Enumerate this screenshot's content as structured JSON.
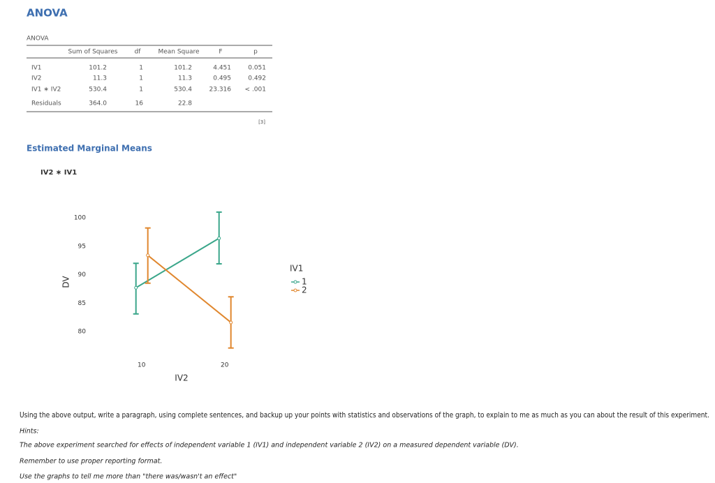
{
  "header": {
    "title": "ANOVA"
  },
  "table": {
    "title": "ANOVA",
    "columns": [
      "Sum of Squares",
      "df",
      "Mean Square",
      "F",
      "p"
    ],
    "rows": [
      [
        "IV1",
        "101.2",
        "1",
        "101.2",
        "4.451",
        "0.051"
      ],
      [
        "IV2",
        "11.3",
        "1",
        "11.3",
        "0.495",
        "0.492"
      ],
      [
        "IV1 ∗ IV2",
        "530.4",
        "1",
        "530.4",
        "23.316",
        "< .001"
      ],
      [
        "Residuals",
        "364.0",
        "16",
        "22.8"
      ]
    ],
    "footnote": "[3]"
  },
  "emm": {
    "title": "Estimated Marginal Means",
    "subtitle": "IV2 ∗ IV1"
  },
  "chart_data": {
    "type": "line",
    "x_label": "IV2",
    "y_label": "DV",
    "legend_title": "IV1",
    "x": [
      10,
      20
    ],
    "series": [
      {
        "name": "1",
        "color": "#3aa68a",
        "values": [
          87.7,
          96.4
        ],
        "lower": [
          83.1,
          91.9
        ],
        "upper": [
          92.0,
          101.0
        ]
      },
      {
        "name": "2",
        "color": "#e0872e",
        "values": [
          93.4,
          81.6
        ],
        "lower": [
          88.5,
          77.1
        ],
        "upper": [
          98.2,
          86.1
        ]
      }
    ],
    "xlim": [
      7,
      23
    ],
    "xticks": [
      10,
      20
    ],
    "ylim": [
      75,
      102
    ],
    "yticks": [
      80,
      85,
      90,
      95,
      100
    ]
  },
  "prompt": {
    "lines": [
      "Using the above output, write a paragraph, using complete sentences, and backup up your points with statistics and observations of the graph, to explain to me as much as you can about the result of this experiment.",
      "Hints:",
      "The above experiment searched for effects of independent variable 1 (IV1) and independent variable 2 (IV2) on a measured dependent variable (DV).",
      "Remember to use proper reporting format.",
      "Use the graphs to tell me more than \"there was/wasn't an effect\""
    ]
  }
}
